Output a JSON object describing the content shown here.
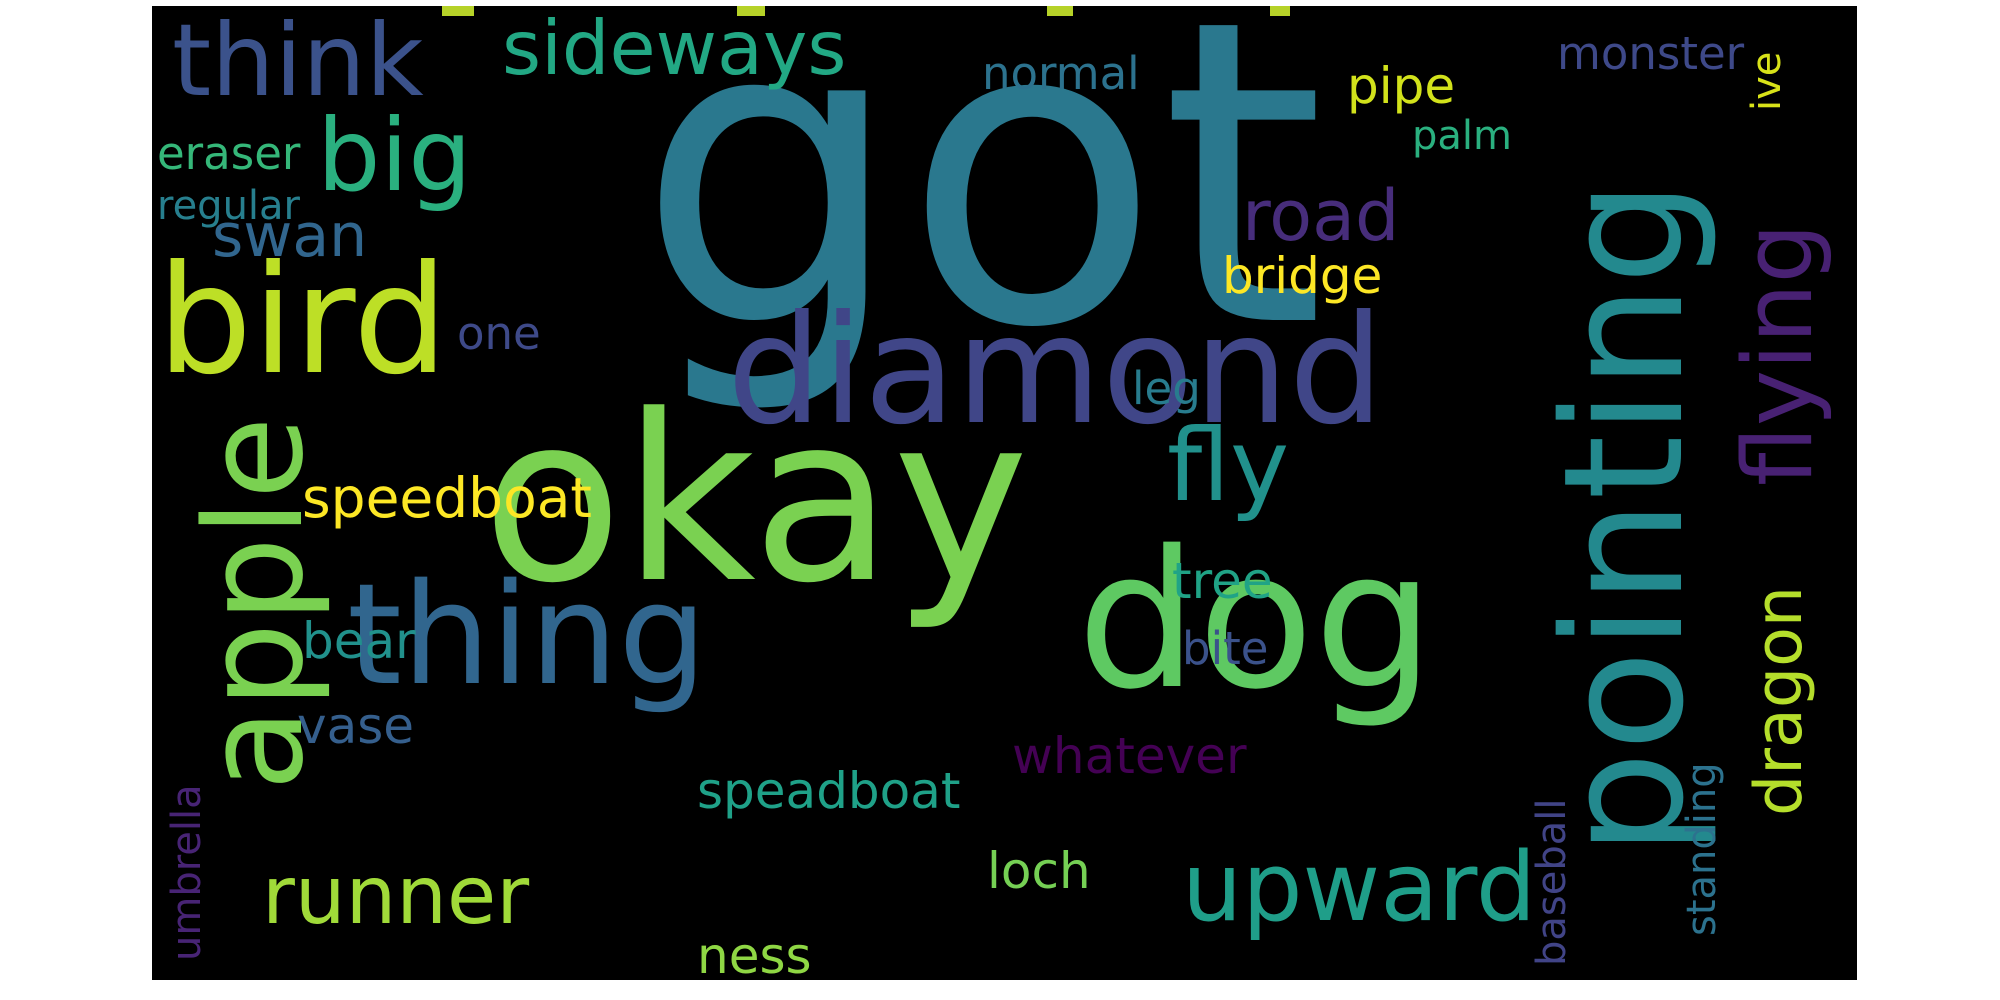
{
  "word_cloud": {
    "background": "#000000",
    "words": [
      {
        "text": "got",
        "color": "#2a788e"
      },
      {
        "text": "okay",
        "color": "#7ad151"
      },
      {
        "text": "bird",
        "color": "#bddf26"
      },
      {
        "text": "diamond",
        "color": "#404688"
      },
      {
        "text": "dog",
        "color": "#5ec962"
      },
      {
        "text": "pointing",
        "color": "#23898e"
      },
      {
        "text": "thing",
        "color": "#31668e"
      },
      {
        "text": "apple",
        "color": "#7ad151"
      },
      {
        "text": "think",
        "color": "#3b528b"
      },
      {
        "text": "sideways",
        "color": "#22a884"
      },
      {
        "text": "big",
        "color": "#2ab07f"
      },
      {
        "text": "flying",
        "color": "#482173"
      },
      {
        "text": "fly",
        "color": "#21918c"
      },
      {
        "text": "upward",
        "color": "#1f9e89"
      },
      {
        "text": "runner",
        "color": "#a0da39"
      },
      {
        "text": "dragon",
        "color": "#b5de2b"
      },
      {
        "text": "swan",
        "color": "#31668e"
      },
      {
        "text": "road",
        "color": "#472d7b"
      },
      {
        "text": "speedboat",
        "color": "#fde725"
      },
      {
        "text": "bridge",
        "color": "#fde725"
      },
      {
        "text": "pipe",
        "color": "#d2e21b"
      },
      {
        "text": "normal",
        "color": "#2c728e"
      },
      {
        "text": "monster",
        "color": "#3e4989"
      },
      {
        "text": "palm",
        "color": "#2ab07f"
      },
      {
        "text": "eraser",
        "color": "#35b779"
      },
      {
        "text": "regular",
        "color": "#277f8e"
      },
      {
        "text": "ive",
        "color": "#d8e219"
      },
      {
        "text": "one",
        "color": "#3e4a89"
      },
      {
        "text": "leg",
        "color": "#287c8e"
      },
      {
        "text": "tree",
        "color": "#20a386"
      },
      {
        "text": "bear",
        "color": "#21918c"
      },
      {
        "text": "bite",
        "color": "#3b528b"
      },
      {
        "text": "vase",
        "color": "#355f8d"
      },
      {
        "text": "whatever",
        "color": "#440154"
      },
      {
        "text": "speadboat",
        "color": "#1fa188"
      },
      {
        "text": "loch",
        "color": "#75d054"
      },
      {
        "text": "ness",
        "color": "#8fd744"
      },
      {
        "text": "umbrella",
        "color": "#482475"
      },
      {
        "text": "baseball",
        "color": "#414487"
      },
      {
        "text": "standing",
        "color": "#2c728e"
      }
    ]
  }
}
